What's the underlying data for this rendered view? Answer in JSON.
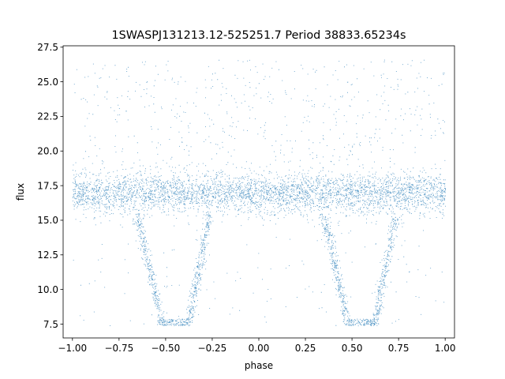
{
  "chart_data": {
    "type": "scatter",
    "title": "1SWASPJ131213.12-525251.7 Period 38833.65234s",
    "xlabel": "phase",
    "ylabel": "flux",
    "xlim": [
      -1.05,
      1.05
    ],
    "ylim": [
      6.5,
      27.6
    ],
    "xticks": [
      -1.0,
      -0.75,
      -0.5,
      -0.25,
      0.0,
      0.25,
      0.5,
      0.75,
      1.0
    ],
    "xtick_labels": [
      "−1.00",
      "−0.75",
      "−0.50",
      "−0.25",
      "0.00",
      "0.25",
      "0.50",
      "0.75",
      "1.00"
    ],
    "yticks": [
      7.5,
      10.0,
      12.5,
      15.0,
      17.5,
      20.0,
      22.5,
      25.0,
      27.5
    ],
    "ytick_labels": [
      "7.5",
      "10.0",
      "12.5",
      "15.0",
      "17.5",
      "20.0",
      "22.5",
      "25.0",
      "27.5"
    ],
    "grid": false,
    "legend": "none",
    "marker_color": "#1f77b4",
    "series": [
      {
        "phase_range": [
          -1.0,
          1.0
        ],
        "baseline_flux": 17.0,
        "baseline_band": [
          15.0,
          19.0
        ],
        "dips": [
          {
            "center_phase": -0.45,
            "ingress_start": -0.65,
            "floor_start": -0.52,
            "floor_end": -0.38,
            "egress_end": -0.27,
            "min_flux": 7.4
          },
          {
            "center_phase": 0.55,
            "ingress_start": 0.35,
            "floor_start": 0.48,
            "floor_end": 0.62,
            "egress_end": 0.73,
            "min_flux": 7.4
          }
        ],
        "outlier_range": [
          7.4,
          26.6
        ]
      }
    ]
  }
}
